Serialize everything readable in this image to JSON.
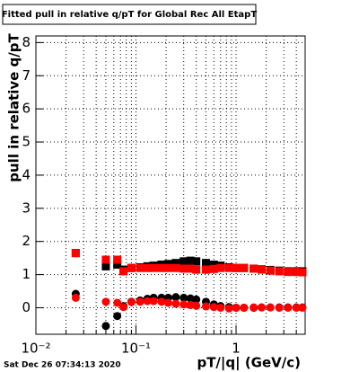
{
  "chart_data": {
    "type": "scatter",
    "title": "Fitted pull in relative q/pT  for Global Rec All EtapT",
    "x_label": "pT/|q| (GeV/c)",
    "y_label": "pull in relative q/pT",
    "footer": "Sat Dec 26 07:34:13 2020",
    "log_x": true,
    "grid": true,
    "xlim": [
      0.01,
      4.9
    ],
    "ylim": [
      -0.8,
      8.2
    ],
    "xticks": [
      {
        "value": 0.01,
        "label": "10⁻²"
      },
      {
        "value": 0.1,
        "label": "10⁻¹"
      },
      1
    ],
    "xminorticks": [
      0.02,
      0.03,
      0.04,
      0.05,
      0.06,
      0.07,
      0.08,
      0.09,
      0.2,
      0.3,
      0.4,
      0.5,
      0.6,
      0.7,
      0.8,
      0.9,
      2,
      3,
      4
    ],
    "yticks": [
      0,
      1,
      2,
      3,
      4,
      5,
      6,
      7,
      8
    ],
    "x": [
      0.025,
      0.05,
      0.065,
      0.075,
      0.09,
      0.11,
      0.13,
      0.15,
      0.18,
      0.21,
      0.25,
      0.3,
      0.35,
      0.4,
      0.5,
      0.6,
      0.7,
      0.85,
      1,
      1.2,
      1.5,
      1.8,
      2.2,
      2.7,
      3.3,
      4,
      4.6
    ],
    "series": [
      {
        "color": "#000000",
        "marker": "square",
        "values": [
          1.65,
          1.25,
          1.3,
          1.15,
          1.2,
          1.22,
          1.25,
          1.27,
          1.3,
          1.32,
          1.35,
          1.4,
          1.42,
          1.4,
          1.35,
          1.3,
          1.27,
          1.22,
          1.2,
          1.2,
          1.18,
          1.16,
          1.14,
          1.12,
          1.1,
          1.1,
          1.1
        ]
      },
      {
        "color": "#000000",
        "marker": "circle",
        "values": [
          0.42,
          -0.55,
          -0.25,
          0.05,
          0.18,
          0.22,
          0.27,
          0.3,
          0.3,
          0.3,
          0.32,
          0.3,
          0.28,
          0.25,
          0.18,
          0.1,
          0.05,
          0.02,
          0,
          0,
          0,
          0.01,
          0.01,
          0.01,
          0.01,
          0.01,
          0.01
        ]
      },
      {
        "color": "#ff0000",
        "marker": "square",
        "values": [
          1.65,
          1.45,
          1.45,
          1.1,
          1.2,
          1.2,
          1.2,
          1.2,
          1.2,
          1.2,
          1.2,
          1.18,
          1.18,
          1.15,
          1.15,
          1.17,
          1.2,
          1.2,
          1.2,
          1.2,
          1.18,
          1.15,
          1.12,
          1.1,
          1.08,
          1.08,
          1.07
        ]
      },
      {
        "color": "#ff0000",
        "marker": "circle",
        "values": [
          0.3,
          0.18,
          0.15,
          0.02,
          0.17,
          0.18,
          0.2,
          0.2,
          0.18,
          0.15,
          0.12,
          0.1,
          0.08,
          0.06,
          0.04,
          0.02,
          0,
          -0.02,
          0,
          0,
          0.01,
          0.01,
          0.01,
          0,
          0,
          0,
          0
        ]
      }
    ]
  }
}
